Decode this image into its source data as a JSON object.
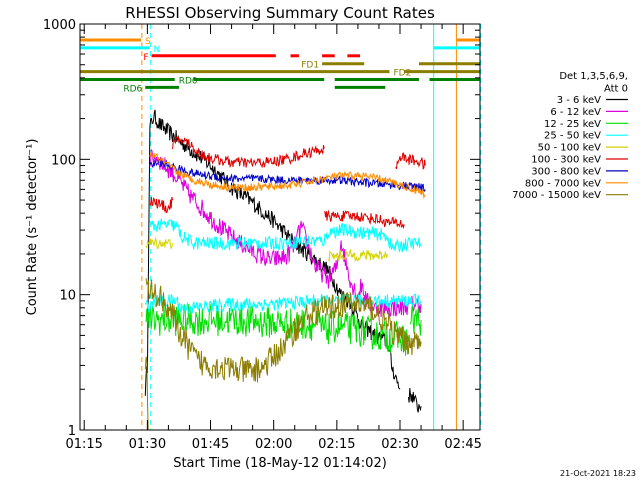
{
  "chart_data": {
    "type": "line",
    "title": "RHESSI Observing Summary Count Rates",
    "xlabel": "Start Time (18-May-12 01:14:02)",
    "ylabel": "Count Rate (s⁻¹ detector⁻¹)",
    "yscale": "log",
    "ylim": [
      1,
      1000
    ],
    "xlim_minutes": [
      74.0,
      169.0
    ],
    "x_ticks": [
      {
        "t": 75,
        "label": "01:15"
      },
      {
        "t": 90,
        "label": "01:30"
      },
      {
        "t": 105,
        "label": "01:45"
      },
      {
        "t": 120,
        "label": "02:00"
      },
      {
        "t": 135,
        "label": "02:15"
      },
      {
        "t": 150,
        "label": "02:30"
      },
      {
        "t": 165,
        "label": "02:45"
      }
    ],
    "y_ticks": [
      {
        "v": 1,
        "label": "1"
      },
      {
        "v": 10,
        "label": "10"
      },
      {
        "v": 100,
        "label": "100"
      },
      {
        "v": 1000,
        "label": "1000"
      }
    ],
    "legend": {
      "position": "right",
      "header": [
        "Det 1,3,5,6,9,",
        "Att 0"
      ],
      "entries": [
        {
          "label": "3 - 6 keV",
          "color": "#000000"
        },
        {
          "label": "6 - 12 keV",
          "color": "#e000e0"
        },
        {
          "label": "12 - 25 keV",
          "color": "#00e000"
        },
        {
          "label": "25 - 50 keV",
          "color": "#00ffff"
        },
        {
          "label": "50 - 100 keV",
          "color": "#d4d400"
        },
        {
          "label": "100 - 300 keV",
          "color": "#e00000"
        },
        {
          "label": "300 - 800 keV",
          "color": "#0000c8"
        },
        {
          "label": "800 - 7000 keV",
          "color": "#ff8c00"
        },
        {
          "label": "7000 - 15000 keV",
          "color": "#8b7d00"
        }
      ]
    },
    "flag_bars": [
      {
        "label": "S",
        "color": "#ff8c00",
        "segments": [
          [
            74,
            88.5
          ],
          [
            163.5,
            169
          ]
        ]
      },
      {
        "label": "N",
        "color": "#00ffff",
        "segments": [
          [
            74,
            90.5
          ],
          [
            158,
            169
          ]
        ]
      },
      {
        "label": "F",
        "color": "#ff0000",
        "segments": [
          [
            91,
            120.5
          ],
          [
            124,
            126
          ],
          [
            131.5,
            134.5
          ],
          [
            137.5,
            140.5
          ]
        ]
      },
      {
        "label": "FD1",
        "color": "#8b7d00",
        "segments": [
          [
            131.5,
            141.5
          ],
          [
            154.5,
            169
          ]
        ]
      },
      {
        "label": "FD2",
        "color": "#8b7d00",
        "segments": [
          [
            74,
            147.5
          ],
          [
            151,
            169
          ]
        ]
      },
      {
        "label": "RD0",
        "color": "#008000",
        "segments": [
          [
            74,
            96.5
          ],
          [
            101,
            132
          ],
          [
            134.5,
            154.5
          ],
          [
            157,
            169
          ]
        ]
      },
      {
        "label": "RD6",
        "color": "#008000",
        "segments": [
          [
            89.5,
            97.5
          ],
          [
            134.5,
            146.5
          ]
        ]
      }
    ],
    "vertical_markers": [
      {
        "t": 88.7,
        "color": "#ff8c00",
        "style": "dashed"
      },
      {
        "t": 90.8,
        "color": "#00ffff",
        "style": "dashed"
      },
      {
        "t": 158.0,
        "color": "#00ffff",
        "style": "solid"
      },
      {
        "t": 163.4,
        "color": "#ff8c00",
        "style": "solid"
      },
      {
        "t": 169.0,
        "color": "#ff8c00",
        "style": "dashed"
      },
      {
        "t": 169.2,
        "color": "#00ffff",
        "style": "dashed"
      }
    ],
    "series": [
      {
        "name": "3 - 6 keV",
        "color": "#000000",
        "noise": 0.06,
        "segments": [
          [
            [
              89.5,
              2
            ],
            [
              90,
              3
            ],
            [
              90.6,
              170
            ],
            [
              91.5,
              210
            ],
            [
              93,
              180
            ],
            [
              96,
              150
            ],
            [
              100,
              120
            ],
            [
              105,
              90
            ],
            [
              110,
              62
            ],
            [
              115,
              48
            ],
            [
              120,
              35
            ],
            [
              125,
              24
            ],
            [
              129,
              19
            ],
            [
              133,
              15
            ],
            [
              136,
              10
            ],
            [
              138,
              9
            ],
            [
              141,
              6
            ],
            [
              144,
              5
            ],
            [
              147,
              4.5
            ],
            [
              148,
              3
            ],
            [
              150,
              2
            ]
          ],
          [
            [
              152,
              1.8
            ],
            [
              153,
              1.8
            ],
            [
              154,
              1.5
            ],
            [
              155,
              1.5
            ]
          ]
        ]
      },
      {
        "name": "6 - 12 keV",
        "color": "#e000e0",
        "noise": 0.07,
        "segments": [
          [
            [
              90.6,
              100
            ],
            [
              92,
              105
            ],
            [
              94,
              90
            ],
            [
              96,
              80
            ],
            [
              100,
              55
            ],
            [
              104,
              40
            ],
            [
              108,
              30
            ],
            [
              112,
              24
            ],
            [
              116,
              20
            ],
            [
              119,
              18
            ],
            [
              123,
              19
            ],
            [
              125,
              23
            ],
            [
              126.5,
              32
            ],
            [
              128,
              24
            ],
            [
              130,
              16
            ],
            [
              133,
              13
            ],
            [
              135,
              16
            ],
            [
              136,
              25
            ],
            [
              137,
              18
            ],
            [
              138.5,
              12
            ],
            [
              140,
              10
            ],
            [
              141,
              12
            ],
            [
              142,
              9
            ],
            [
              144,
              8
            ],
            [
              147,
              8
            ],
            [
              150,
              8
            ],
            [
              153,
              8.5
            ],
            [
              155,
              8.5
            ]
          ]
        ]
      },
      {
        "name": "12 - 25 keV",
        "color": "#00e000",
        "noise": 0.12,
        "segments": [
          [
            [
              89.7,
              6.5
            ],
            [
              95,
              6.5
            ],
            [
              100,
              6.5
            ],
            [
              110,
              6.5
            ],
            [
              120,
              6.2
            ],
            [
              130,
              6
            ],
            [
              132,
              5.5
            ],
            [
              135,
              5.8
            ],
            [
              140,
              5.5
            ],
            [
              145,
              5
            ],
            [
              150,
              4.8
            ],
            [
              152,
              4.5
            ]
          ],
          [
            [
              152.5,
              6.5
            ],
            [
              155,
              6.5
            ]
          ]
        ]
      },
      {
        "name": "25 - 50 keV",
        "color": "#00ffff",
        "noise": 0.05,
        "segments": [
          [
            [
              90.6,
              32
            ],
            [
              95,
              33
            ],
            [
              97,
              32
            ],
            [
              98,
              27
            ],
            [
              101,
              24
            ],
            [
              105,
              24
            ],
            [
              110,
              24
            ],
            [
              115,
              24
            ],
            [
              120,
              24
            ],
            [
              125,
              24.5
            ],
            [
              130,
              25
            ],
            [
              132,
              25
            ],
            [
              133,
              29
            ],
            [
              136,
              30
            ],
            [
              140,
              29
            ],
            [
              145,
              28
            ],
            [
              147,
              27
            ],
            [
              148,
              22
            ],
            [
              150,
              23
            ],
            [
              153,
              24
            ],
            [
              155,
              24
            ]
          ],
          [
            [
              89.5,
              8
            ],
            [
              92,
              9
            ],
            [
              95,
              9
            ],
            [
              97,
              9
            ],
            [
              98,
              8
            ],
            [
              100,
              8
            ],
            [
              110,
              8.5
            ],
            [
              120,
              8.5
            ],
            [
              130,
              9
            ],
            [
              140,
              9
            ],
            [
              146,
              9
            ],
            [
              150,
              9
            ],
            [
              153,
              9
            ],
            [
              155,
              9
            ]
          ]
        ]
      },
      {
        "name": "50 - 100 keV",
        "color": "#d4d400",
        "noise": 0.04,
        "segments": [
          [
            [
              89.7,
              24
            ],
            [
              93,
              24
            ],
            [
              96,
              24
            ]
          ],
          [
            [
              133,
              19
            ],
            [
              136,
              19.5
            ],
            [
              140,
              19.5
            ],
            [
              143,
              19.5
            ],
            [
              145,
              19.5
            ],
            [
              147,
              20
            ]
          ]
        ]
      },
      {
        "name": "100 - 300 keV",
        "color": "#e00000",
        "noise": 0.04,
        "segments": [
          [
            [
              90.6,
              50
            ],
            [
              92,
              48
            ],
            [
              94,
              45
            ],
            [
              95,
              43
            ],
            [
              96,
              50
            ]
          ],
          [
            [
              96,
              130
            ],
            [
              98,
              140
            ],
            [
              100,
              130
            ],
            [
              102,
              112
            ],
            [
              105,
              102
            ],
            [
              110,
              95
            ],
            [
              115,
              94
            ],
            [
              120,
              96
            ],
            [
              124,
              102
            ],
            [
              127,
              110
            ],
            [
              130,
              115
            ],
            [
              132,
              120
            ]
          ],
          [
            [
              132,
              38
            ],
            [
              135,
              38
            ],
            [
              140,
              38
            ],
            [
              145,
              36
            ],
            [
              147,
              34
            ],
            [
              149,
              34
            ],
            [
              151,
              33
            ]
          ],
          [
            [
              149,
              85
            ],
            [
              150,
              105
            ],
            [
              152,
              100
            ],
            [
              155,
              95
            ],
            [
              156,
              90
            ]
          ]
        ]
      },
      {
        "name": "300 - 800 keV",
        "color": "#0000c8",
        "noise": 0.03,
        "segments": [
          [
            [
              90.6,
              90
            ],
            [
              93,
              95
            ],
            [
              96,
              88
            ],
            [
              100,
              80
            ],
            [
              104,
              76
            ],
            [
              110,
              72
            ],
            [
              115,
              72
            ],
            [
              120,
              71
            ],
            [
              125,
              70
            ],
            [
              130,
              70
            ],
            [
              135,
              70
            ],
            [
              140,
              68
            ],
            [
              145,
              66
            ],
            [
              150,
              64
            ],
            [
              155,
              62
            ],
            [
              156,
              60
            ]
          ]
        ]
      },
      {
        "name": "800 - 7000 keV",
        "color": "#ff8c00",
        "noise": 0.03,
        "segments": [
          [
            [
              90.6,
              110
            ],
            [
              93,
              100
            ],
            [
              96,
              85
            ],
            [
              100,
              72
            ],
            [
              105,
              65
            ],
            [
              110,
              62
            ],
            [
              115,
              62
            ],
            [
              120,
              63
            ],
            [
              125,
              65
            ],
            [
              130,
              70
            ],
            [
              135,
              75
            ],
            [
              140,
              76
            ],
            [
              145,
              72
            ],
            [
              150,
              65
            ],
            [
              155,
              58
            ],
            [
              156,
              55
            ]
          ]
        ]
      },
      {
        "name": "7000 - 15000 keV",
        "color": "#8b7d00",
        "noise": 0.1,
        "segments": [
          [
            [
              89.7,
              11
            ],
            [
              92,
              10
            ],
            [
              94,
              9
            ],
            [
              96,
              7
            ],
            [
              98,
              5
            ],
            [
              100,
              4
            ],
            [
              102,
              3.2
            ],
            [
              105,
              3
            ],
            [
              110,
              2.8
            ],
            [
              115,
              2.7
            ],
            [
              118,
              3
            ],
            [
              120,
              3.5
            ],
            [
              122,
              4
            ],
            [
              124,
              5
            ],
            [
              126,
              6
            ],
            [
              128,
              7
            ],
            [
              130,
              7.5
            ],
            [
              133,
              8
            ],
            [
              136,
              8.5
            ],
            [
              140,
              8.5
            ],
            [
              143,
              8
            ],
            [
              145,
              7
            ],
            [
              147,
              6
            ],
            [
              149,
              5
            ],
            [
              151,
              4.5
            ],
            [
              153,
              4.5
            ],
            [
              155,
              4.5
            ]
          ],
          [
            [
              89.5,
              3.5
            ],
            [
              89.9,
              3.5
            ],
            [
              90.2,
              1
            ]
          ]
        ]
      }
    ]
  },
  "timestamp": "21-Oct-2021 18:23"
}
